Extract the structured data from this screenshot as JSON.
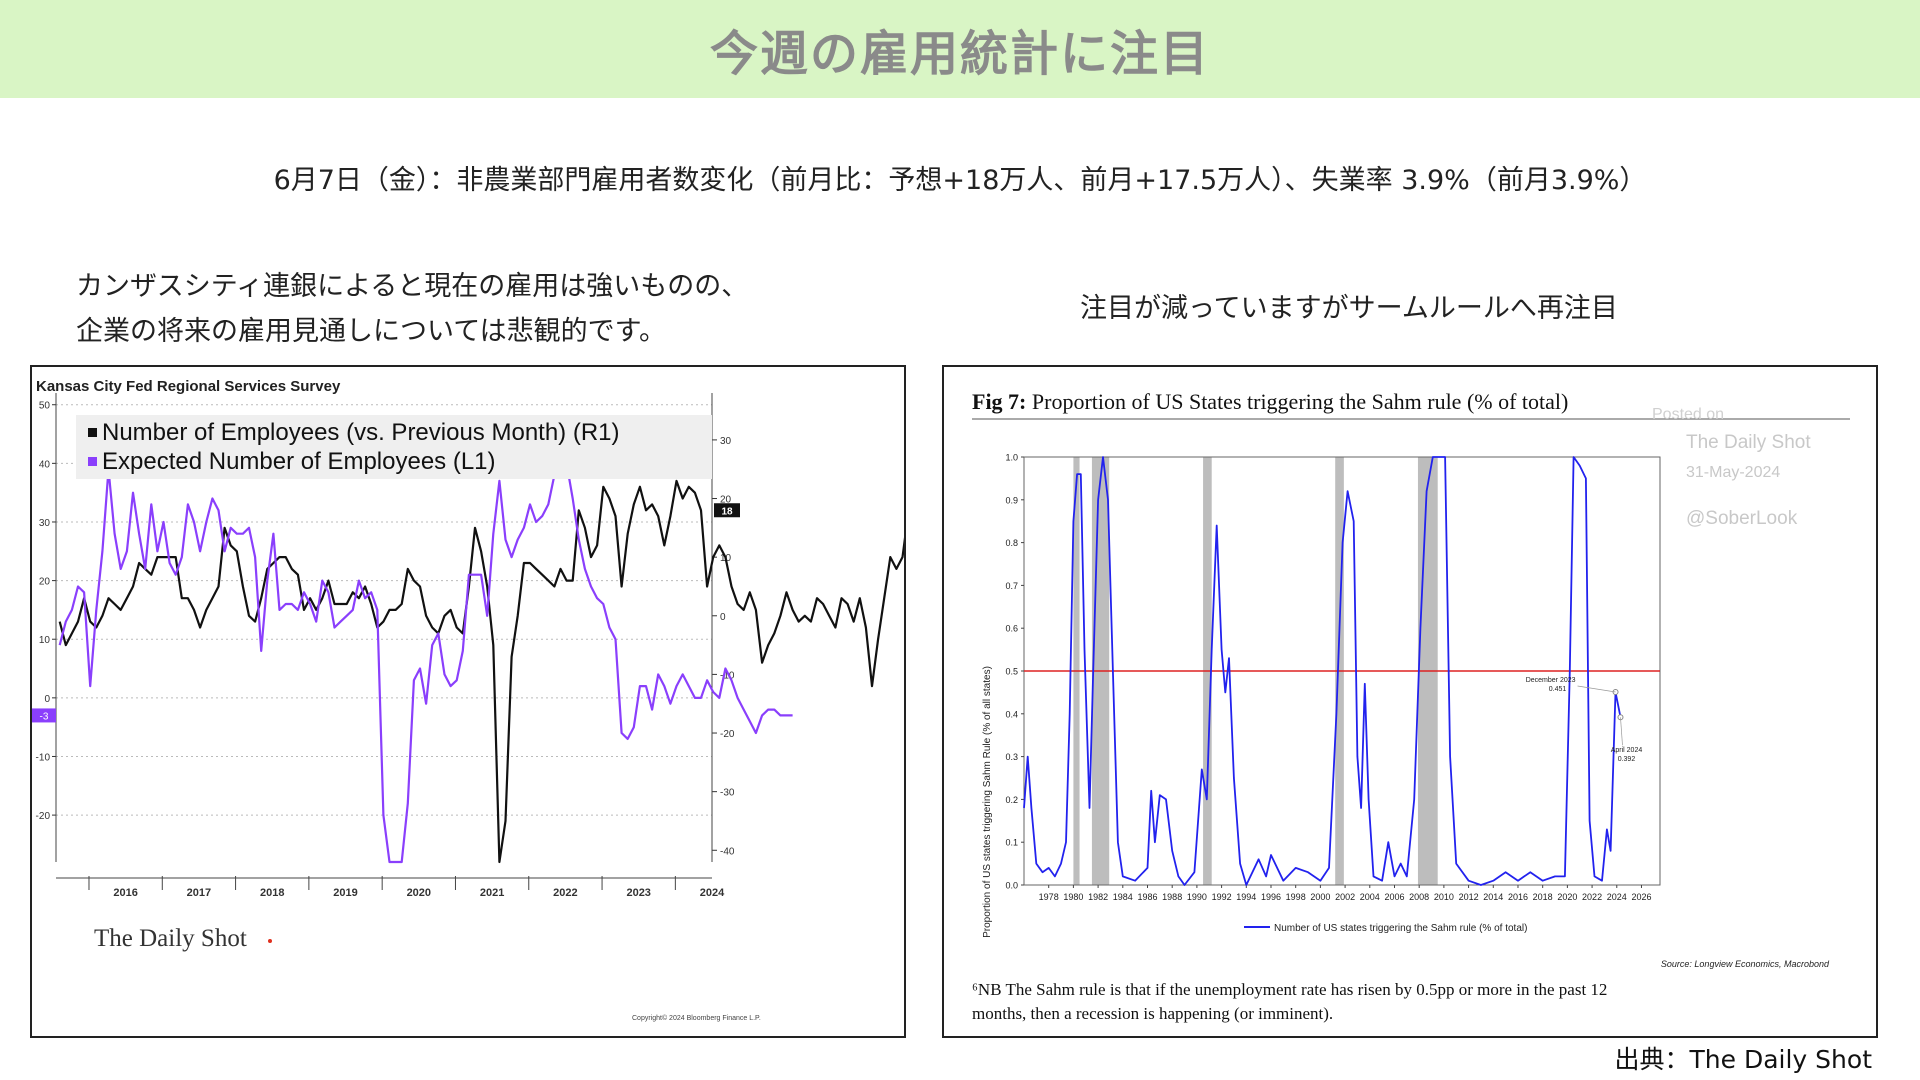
{
  "page": {
    "title": "今週の雇用統計に注目",
    "headline": "6月7日（金）：非農業部門雇用者数変化（前月比：予想+18万人、前月+17.5万人）、失業率 3.9%（前月3.9%）",
    "left_caption_line1": "カンザスシティ連銀によると現在の雇用は強いものの、",
    "left_caption_line2": "企業の将来の雇用見通しについては悲観的です。",
    "right_caption": "注目が減っていますがサームルールへ再注目",
    "source": "出典：The Daily Shot"
  },
  "colors": {
    "title_bg": "#d9f5c5",
    "title_text": "#8a8a8a",
    "employees_line": "#111111",
    "expected_line": "#8a3ffc",
    "sahm_line": "#2222ee",
    "threshold_line": "#dd2222",
    "recession_shade": "#bdbdbd"
  },
  "chart_data": [
    {
      "type": "line",
      "title": "Kansas City Fed Regional Services Survey",
      "watermark": "The Daily Shot",
      "copyright": "Copyright© 2024 Bloomberg Finance L.P.",
      "x_ticks": [
        "2016",
        "2017",
        "2018",
        "2019",
        "2020",
        "2021",
        "2022",
        "2023",
        "2024"
      ],
      "x_range": [
        2015.55,
        2024.5
      ],
      "left_axis": {
        "range": [
          -28,
          52
        ],
        "ticks": [
          50,
          40,
          30,
          20,
          10,
          0,
          -10,
          -20
        ]
      },
      "right_axis": {
        "range": [
          -42,
          38
        ],
        "ticks": [
          30,
          20,
          10,
          0,
          -10,
          -20,
          -30,
          -40
        ]
      },
      "last_value_labels": {
        "right": "18",
        "left": "-3"
      },
      "series": [
        {
          "name": "Number of Employees (vs. Previous Month) (R1)",
          "axis": "right",
          "start": 2015.6,
          "step": 0.08333,
          "values": [
            -1,
            -5,
            -3,
            -1,
            3,
            -1,
            -2,
            0,
            3,
            2,
            1,
            3,
            5,
            9,
            8,
            7,
            10,
            10,
            10,
            10,
            3,
            3,
            1,
            -2,
            1,
            3,
            5,
            15,
            12,
            11,
            5,
            0,
            -1,
            3,
            8,
            9,
            10,
            10,
            8,
            7,
            1,
            3,
            1,
            3,
            6,
            2,
            2,
            2,
            4,
            3,
            5,
            2,
            -2,
            -1,
            1,
            1,
            2,
            8,
            6,
            5,
            0,
            -2,
            -3,
            0,
            1,
            -2,
            -3,
            5,
            15,
            11,
            5,
            -5,
            -42,
            -35,
            -7,
            0,
            9,
            9,
            8,
            7,
            6,
            5,
            8,
            6,
            6,
            18,
            15,
            10,
            12,
            22,
            20,
            17,
            5,
            14,
            19,
            22,
            18,
            19,
            17,
            12,
            17,
            23,
            20,
            22,
            21,
            18,
            5,
            10,
            12,
            10,
            5,
            2,
            1,
            4,
            1,
            -8,
            -5,
            -3,
            0,
            4,
            1,
            -1,
            0,
            -1,
            3,
            2,
            0,
            -2,
            3,
            2,
            -1,
            3,
            -2,
            -12,
            -4,
            3,
            10,
            8,
            10,
            18
          ]
        },
        {
          "name": "Expected Number of Employees (L1)",
          "axis": "left",
          "start": 2015.6,
          "step": 0.08333,
          "values": [
            9,
            13,
            15,
            19,
            18,
            2,
            15,
            25,
            39,
            28,
            22,
            25,
            35,
            28,
            22,
            33,
            25,
            30,
            23,
            21,
            24,
            33,
            30,
            25,
            30,
            34,
            32,
            25,
            29,
            28,
            28,
            29,
            24,
            8,
            20,
            28,
            15,
            16,
            16,
            15,
            18,
            16,
            13,
            20,
            18,
            12,
            13,
            14,
            15,
            20,
            17,
            18,
            15,
            -20,
            -28,
            -28,
            -28,
            -18,
            3,
            5,
            -1,
            9,
            11,
            4,
            2,
            3,
            8,
            21,
            21,
            21,
            14,
            28,
            37,
            27,
            24,
            27,
            29,
            33,
            30,
            31,
            33,
            38,
            41,
            40,
            34,
            27,
            22,
            19,
            17,
            16,
            12,
            10,
            -6,
            -7,
            -5,
            2,
            2,
            -2,
            4,
            2,
            -1,
            2,
            4,
            2,
            0,
            0,
            3,
            1,
            0,
            5,
            3,
            0,
            -2,
            -4,
            -6,
            -3,
            -2,
            -2,
            -3,
            -3,
            -3
          ]
        }
      ]
    },
    {
      "type": "line",
      "title": "Fig 7: Proportion of US States triggering the Sahm rule (% of total)",
      "title_prefix": "Fig 7:",
      "title_rest": "Proportion of US States triggering the Sahm rule (% of total)",
      "ylabel": "Proportion of US states triggering Sahm Rule (% of all states)",
      "legend": "Number of US states triggering the Sahm rule (% of total)",
      "source_note": "Source: Longview Economics, Macrobond",
      "footnote_line1": "⁶NB The Sahm rule is that if the unemployment rate has risen by 0.5pp or more in the past 12",
      "footnote_line2": "months, then a recession is happening (or imminent).",
      "watermark_lines": [
        "Posted on",
        "The Daily Shot",
        "31-May-2024",
        "@SoberLook"
      ],
      "ylim": [
        0,
        1.0
      ],
      "xlim": [
        1976,
        2027.5
      ],
      "y_ticks": [
        "0.0",
        "0.1",
        "0.2",
        "0.3",
        "0.4",
        "0.5",
        "0.6",
        "0.7",
        "0.8",
        "0.9",
        "1.0"
      ],
      "x_ticks": [
        "1978",
        "1980",
        "1982",
        "1984",
        "1986",
        "1988",
        "1990",
        "1992",
        "1994",
        "1996",
        "1998",
        "2000",
        "2002",
        "2004",
        "2006",
        "2008",
        "2010",
        "2012",
        "2014",
        "2016",
        "2018",
        "2020",
        "2022",
        "2024",
        "2026"
      ],
      "threshold": 0.5,
      "recessions": [
        [
          1980.0,
          1980.5
        ],
        [
          1981.5,
          1982.9
        ],
        [
          1990.5,
          1991.2
        ],
        [
          2001.2,
          2001.9
        ],
        [
          2007.9,
          2009.5
        ]
      ],
      "annotations": [
        {
          "label": "December 2023",
          "value": "0.451",
          "x": 2023.9,
          "y": 0.451
        },
        {
          "label": "April 2024",
          "value": "0.392",
          "x": 2024.3,
          "y": 0.392
        }
      ],
      "series": [
        {
          "name": "Number of US states triggering the Sahm rule (% of total)",
          "points": [
            [
              1976,
              0.18
            ],
            [
              1976.3,
              0.3
            ],
            [
              1976.6,
              0.18
            ],
            [
              1977,
              0.05
            ],
            [
              1977.5,
              0.03
            ],
            [
              1978,
              0.04
            ],
            [
              1978.5,
              0.02
            ],
            [
              1979,
              0.05
            ],
            [
              1979.4,
              0.1
            ],
            [
              1979.7,
              0.4
            ],
            [
              1980,
              0.85
            ],
            [
              1980.3,
              0.96
            ],
            [
              1980.6,
              0.96
            ],
            [
              1980.9,
              0.55
            ],
            [
              1981.3,
              0.18
            ],
            [
              1981.6,
              0.5
            ],
            [
              1982,
              0.9
            ],
            [
              1982.4,
              1.0
            ],
            [
              1982.8,
              0.9
            ],
            [
              1983.2,
              0.5
            ],
            [
              1983.6,
              0.1
            ],
            [
              1984,
              0.02
            ],
            [
              1985,
              0.01
            ],
            [
              1986,
              0.04
            ],
            [
              1986.3,
              0.22
            ],
            [
              1986.6,
              0.1
            ],
            [
              1987,
              0.21
            ],
            [
              1987.5,
              0.2
            ],
            [
              1988,
              0.08
            ],
            [
              1988.5,
              0.02
            ],
            [
              1989,
              0.0
            ],
            [
              1989.8,
              0.03
            ],
            [
              1990.4,
              0.27
            ],
            [
              1990.8,
              0.2
            ],
            [
              1991.2,
              0.55
            ],
            [
              1991.6,
              0.84
            ],
            [
              1992,
              0.55
            ],
            [
              1992.3,
              0.45
            ],
            [
              1992.6,
              0.53
            ],
            [
              1993,
              0.25
            ],
            [
              1993.5,
              0.05
            ],
            [
              1994,
              0.0
            ],
            [
              1995,
              0.06
            ],
            [
              1995.6,
              0.02
            ],
            [
              1996,
              0.07
            ],
            [
              1997,
              0.01
            ],
            [
              1998,
              0.04
            ],
            [
              1999,
              0.03
            ],
            [
              2000,
              0.01
            ],
            [
              2000.7,
              0.04
            ],
            [
              2001.3,
              0.4
            ],
            [
              2001.8,
              0.8
            ],
            [
              2002.2,
              0.92
            ],
            [
              2002.7,
              0.85
            ],
            [
              2003,
              0.3
            ],
            [
              2003.3,
              0.18
            ],
            [
              2003.6,
              0.47
            ],
            [
              2003.9,
              0.2
            ],
            [
              2004.3,
              0.02
            ],
            [
              2005,
              0.01
            ],
            [
              2005.5,
              0.1
            ],
            [
              2006,
              0.02
            ],
            [
              2006.5,
              0.05
            ],
            [
              2007,
              0.02
            ],
            [
              2007.6,
              0.2
            ],
            [
              2008.1,
              0.6
            ],
            [
              2008.6,
              0.92
            ],
            [
              2009.1,
              1.0
            ],
            [
              2009.6,
              1.0
            ],
            [
              2010.1,
              1.0
            ],
            [
              2010.5,
              0.3
            ],
            [
              2011,
              0.05
            ],
            [
              2012,
              0.01
            ],
            [
              2013,
              0.0
            ],
            [
              2014,
              0.01
            ],
            [
              2015,
              0.03
            ],
            [
              2016,
              0.01
            ],
            [
              2016.5,
              0.02
            ],
            [
              2017,
              0.03
            ],
            [
              2018,
              0.01
            ],
            [
              2019,
              0.02
            ],
            [
              2019.8,
              0.02
            ],
            [
              2020.2,
              0.5
            ],
            [
              2020.5,
              1.0
            ],
            [
              2021,
              0.98
            ],
            [
              2021.5,
              0.95
            ],
            [
              2021.8,
              0.15
            ],
            [
              2022.2,
              0.02
            ],
            [
              2022.8,
              0.01
            ],
            [
              2023.2,
              0.13
            ],
            [
              2023.5,
              0.08
            ],
            [
              2023.9,
              0.451
            ],
            [
              2024.3,
              0.392
            ]
          ]
        }
      ]
    }
  ]
}
